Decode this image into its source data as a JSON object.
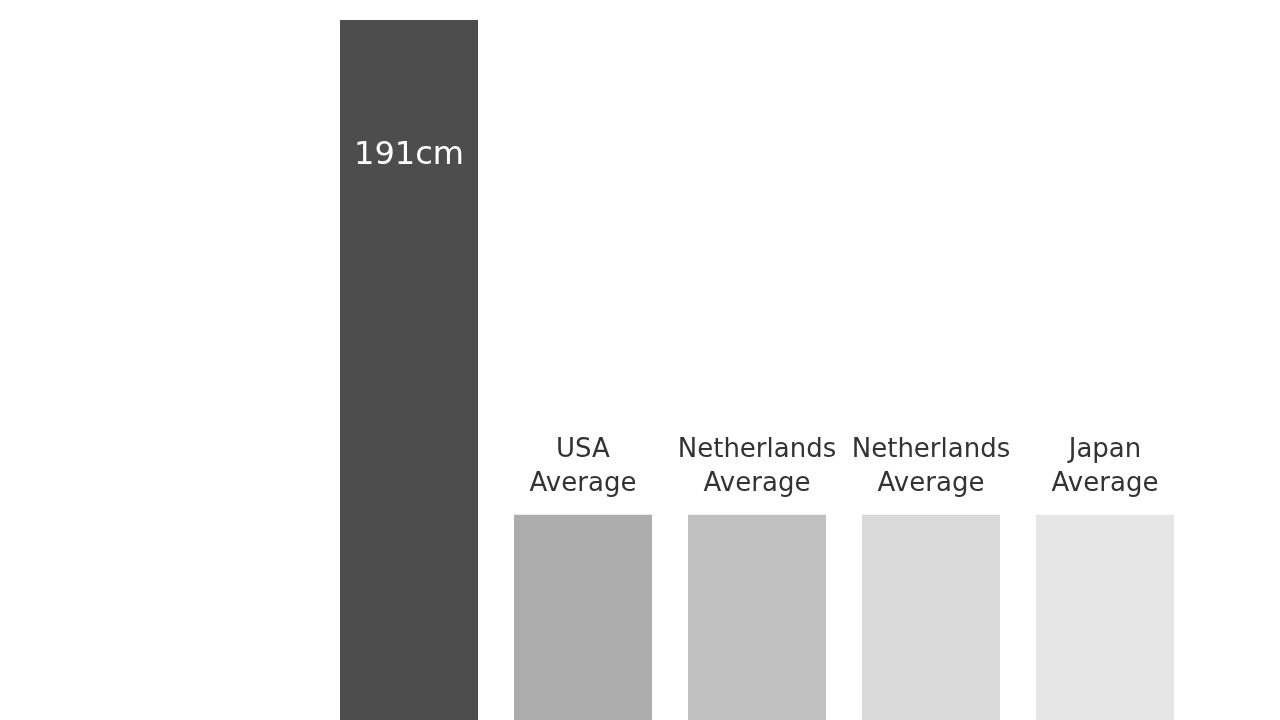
{
  "chart_data": {
    "type": "bar",
    "categories": [
      null,
      "USA Average",
      "Netherlands Average",
      "Netherlands Average",
      "Japan Average"
    ],
    "values": [
      191,
      56,
      56,
      56,
      56
    ],
    "colors": [
      "#4d4d4d",
      "#adadad",
      "#c0c0c0",
      "#dadada",
      "#e6e6e6"
    ],
    "value_labels": [
      "191cm",
      null,
      null,
      null,
      null
    ]
  }
}
